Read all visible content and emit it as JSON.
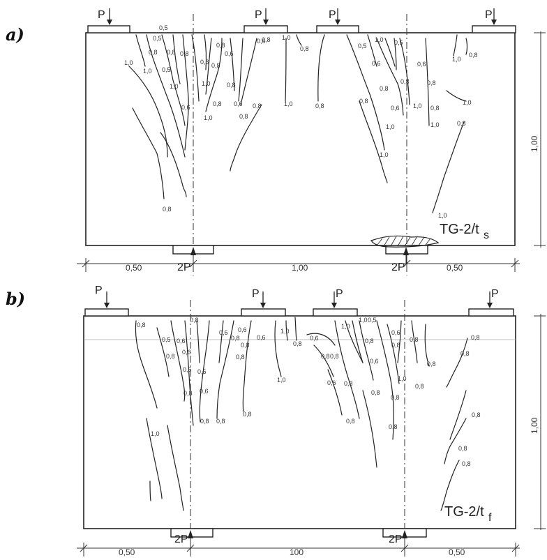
{
  "panels": [
    {
      "label": "a)",
      "specimen_main": "TG-2/t",
      "specimen_sub": "s",
      "loads": [
        "P",
        "P",
        "P",
        "P"
      ],
      "support_load": [
        "2P",
        "2P"
      ],
      "dims": [
        "0,50",
        "1,00",
        "0,50"
      ],
      "height": "1,00",
      "crack_labels": [
        "0,5",
        "0,8",
        "0,8",
        "1,0",
        "1,0",
        "0,5",
        "1,0",
        "0,6",
        "0,5",
        "0,8",
        "0,6",
        "0,8",
        "0,8",
        "0,6",
        "1,0",
        "0,8",
        "1,0",
        "0,8",
        "0,6",
        "0,8",
        "0,8",
        "0,6",
        "0,8",
        "1,0",
        "0,8",
        "1,0",
        "0,8",
        "0,5",
        "0,8",
        "1,0",
        "0,6",
        "0,8",
        "0,6",
        "1,0",
        "1,0",
        "0,5",
        "0,8",
        "0,6",
        "1,0",
        "0,8",
        "0,8",
        "1,0",
        "1,0",
        "0,8",
        "1,0",
        "0,8",
        "1,0",
        "0,8"
      ]
    },
    {
      "label": "b)",
      "specimen_main": "TG-2/t",
      "specimen_sub": "f",
      "loads": [
        "P",
        "P",
        "P",
        "P"
      ],
      "support_load": [
        "2P",
        "2P"
      ],
      "dims": [
        "0,50",
        "100",
        "0,50"
      ],
      "height": "1,00",
      "crack_labels": [
        "0,8",
        "0,5",
        "0,8",
        "0,6",
        "0,6",
        "0,8",
        "0,6",
        "0,5",
        "0,8",
        "0,6",
        "0,8",
        "0,8",
        "0,6",
        "0,8",
        "0,6",
        "0,8",
        "0,8",
        "0,6",
        "1,0",
        "0,8",
        "1,0",
        "0,8",
        "0,6",
        "0,8",
        "0,8",
        "0,6",
        "1,0",
        "0,8",
        "0,8",
        "1,0",
        "0,5",
        "0,8",
        "0,6",
        "0,8",
        "0,6",
        "0,8",
        "1,0",
        "0,8",
        "0,8",
        "0,8",
        "0,8",
        "0,8",
        "0,8",
        "0,8",
        "0,8",
        "0,8",
        "0,8",
        "1,0"
      ]
    }
  ]
}
